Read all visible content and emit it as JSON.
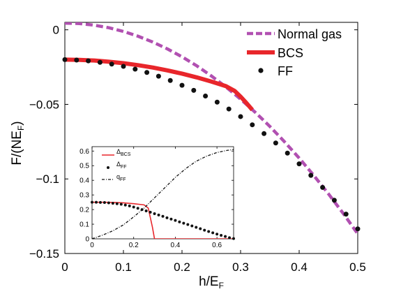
{
  "chart_data": [
    {
      "type": "line",
      "xlabel": "h/E_F",
      "ylabel": "F/(NE_F)",
      "xlim": [
        0,
        0.5
      ],
      "ylim": [
        -0.15,
        0.005
      ],
      "xticks": [
        0,
        0.1,
        0.2,
        0.3,
        0.4,
        0.5
      ],
      "xtick_labels": [
        "0",
        "0.1",
        "0.2",
        "0.3",
        "0.4",
        "0.5"
      ],
      "yticks": [
        0,
        -0.05,
        -0.1,
        -0.15
      ],
      "ytick_labels": [
        "0",
        "−0.05",
        "−0.1",
        "−0.15"
      ],
      "legend_position": "top-right",
      "series": [
        {
          "name": "Normal gas",
          "style": "dashed",
          "color": "#b150b1",
          "x": [
            0,
            0.025,
            0.05,
            0.075,
            0.1,
            0.125,
            0.15,
            0.175,
            0.2,
            0.225,
            0.25,
            0.275,
            0.3,
            0.325,
            0.35,
            0.375,
            0.4,
            0.425,
            0.45,
            0.475,
            0.5
          ],
          "y": [
            0.0045,
            0.0042,
            0.0031,
            0.0014,
            -0.0011,
            -0.0043,
            -0.0082,
            -0.0128,
            -0.0181,
            -0.0241,
            -0.0309,
            -0.0383,
            -0.0465,
            -0.0553,
            -0.0648,
            -0.0751,
            -0.086,
            -0.0977,
            -0.11,
            -0.123,
            -0.1368
          ]
        },
        {
          "name": "BCS",
          "style": "solid",
          "color": "#e8262b",
          "x": [
            0,
            0.025,
            0.05,
            0.075,
            0.1,
            0.125,
            0.15,
            0.175,
            0.2,
            0.225,
            0.25,
            0.275,
            0.29,
            0.3,
            0.31,
            0.32
          ],
          "y": [
            -0.02,
            -0.0202,
            -0.0206,
            -0.0214,
            -0.0224,
            -0.0237,
            -0.0253,
            -0.0272,
            -0.0294,
            -0.0319,
            -0.0347,
            -0.0378,
            -0.041,
            -0.0448,
            -0.0491,
            -0.0537
          ]
        },
        {
          "name": "FF",
          "style": "markers",
          "color": "#111111",
          "x": [
            0,
            0.02,
            0.04,
            0.06,
            0.08,
            0.1,
            0.12,
            0.14,
            0.16,
            0.18,
            0.2,
            0.22,
            0.24,
            0.26,
            0.28,
            0.3,
            0.32,
            0.34,
            0.36,
            0.38,
            0.4,
            0.42,
            0.44,
            0.46,
            0.48,
            0.5
          ],
          "y": [
            -0.02,
            -0.0203,
            -0.0208,
            -0.0218,
            -0.023,
            -0.0245,
            -0.0264,
            -0.0286,
            -0.0311,
            -0.034,
            -0.0372,
            -0.0406,
            -0.0444,
            -0.0485,
            -0.0531,
            -0.0582,
            -0.0637,
            -0.0696,
            -0.0759,
            -0.0827,
            -0.0899,
            -0.0976,
            -0.1057,
            -0.1143,
            -0.1236,
            -0.1335
          ]
        }
      ]
    },
    {
      "type": "line",
      "role": "inset",
      "xlim": [
        0,
        0.68
      ],
      "ylim": [
        0,
        0.63
      ],
      "xticks": [
        0,
        0.2,
        0.4,
        0.6
      ],
      "xtick_labels": [
        "0",
        "0.2",
        "0.4",
        "0.6"
      ],
      "yticks": [
        0,
        0.1,
        0.2,
        0.3,
        0.4,
        0.5,
        0.6
      ],
      "ytick_labels": [
        "0",
        "0.1",
        "0.2",
        "0.3",
        "0.4",
        "0.5",
        "0.6"
      ],
      "legend_position": "top-left",
      "series": [
        {
          "name": "Δ_BCS",
          "style": "solid",
          "color": "#e8262b",
          "x": [
            0,
            0.05,
            0.1,
            0.15,
            0.2,
            0.25,
            0.27,
            0.29,
            0.3,
            0.68
          ],
          "y": [
            0.25,
            0.25,
            0.249,
            0.246,
            0.24,
            0.232,
            0.21,
            0.08,
            0,
            0
          ]
        },
        {
          "name": "Δ_FF",
          "style": "markers",
          "color": "#111111",
          "x": [
            0,
            0.02,
            0.04,
            0.06,
            0.08,
            0.1,
            0.12,
            0.14,
            0.16,
            0.18,
            0.2,
            0.22,
            0.24,
            0.26,
            0.28,
            0.3,
            0.32,
            0.34,
            0.36,
            0.38,
            0.4,
            0.42,
            0.44,
            0.46,
            0.48,
            0.5,
            0.52,
            0.54,
            0.56,
            0.58,
            0.6,
            0.62,
            0.64,
            0.66,
            0.68
          ],
          "y": [
            0.25,
            0.25,
            0.249,
            0.248,
            0.246,
            0.243,
            0.24,
            0.236,
            0.231,
            0.225,
            0.217,
            0.209,
            0.2,
            0.191,
            0.182,
            0.172,
            0.163,
            0.154,
            0.144,
            0.135,
            0.126,
            0.116,
            0.107,
            0.098,
            0.088,
            0.079,
            0.069,
            0.059,
            0.05,
            0.041,
            0.032,
            0.024,
            0.016,
            0.008,
            0.002
          ]
        },
        {
          "name": "q_FF",
          "style": "dashdot",
          "color": "#111111",
          "x": [
            0,
            0.05,
            0.1,
            0.15,
            0.2,
            0.25,
            0.3,
            0.35,
            0.4,
            0.45,
            0.5,
            0.55,
            0.6,
            0.65,
            0.68
          ],
          "y": [
            0,
            0.025,
            0.055,
            0.095,
            0.15,
            0.21,
            0.28,
            0.35,
            0.42,
            0.48,
            0.53,
            0.565,
            0.59,
            0.605,
            0.61
          ]
        }
      ]
    }
  ]
}
